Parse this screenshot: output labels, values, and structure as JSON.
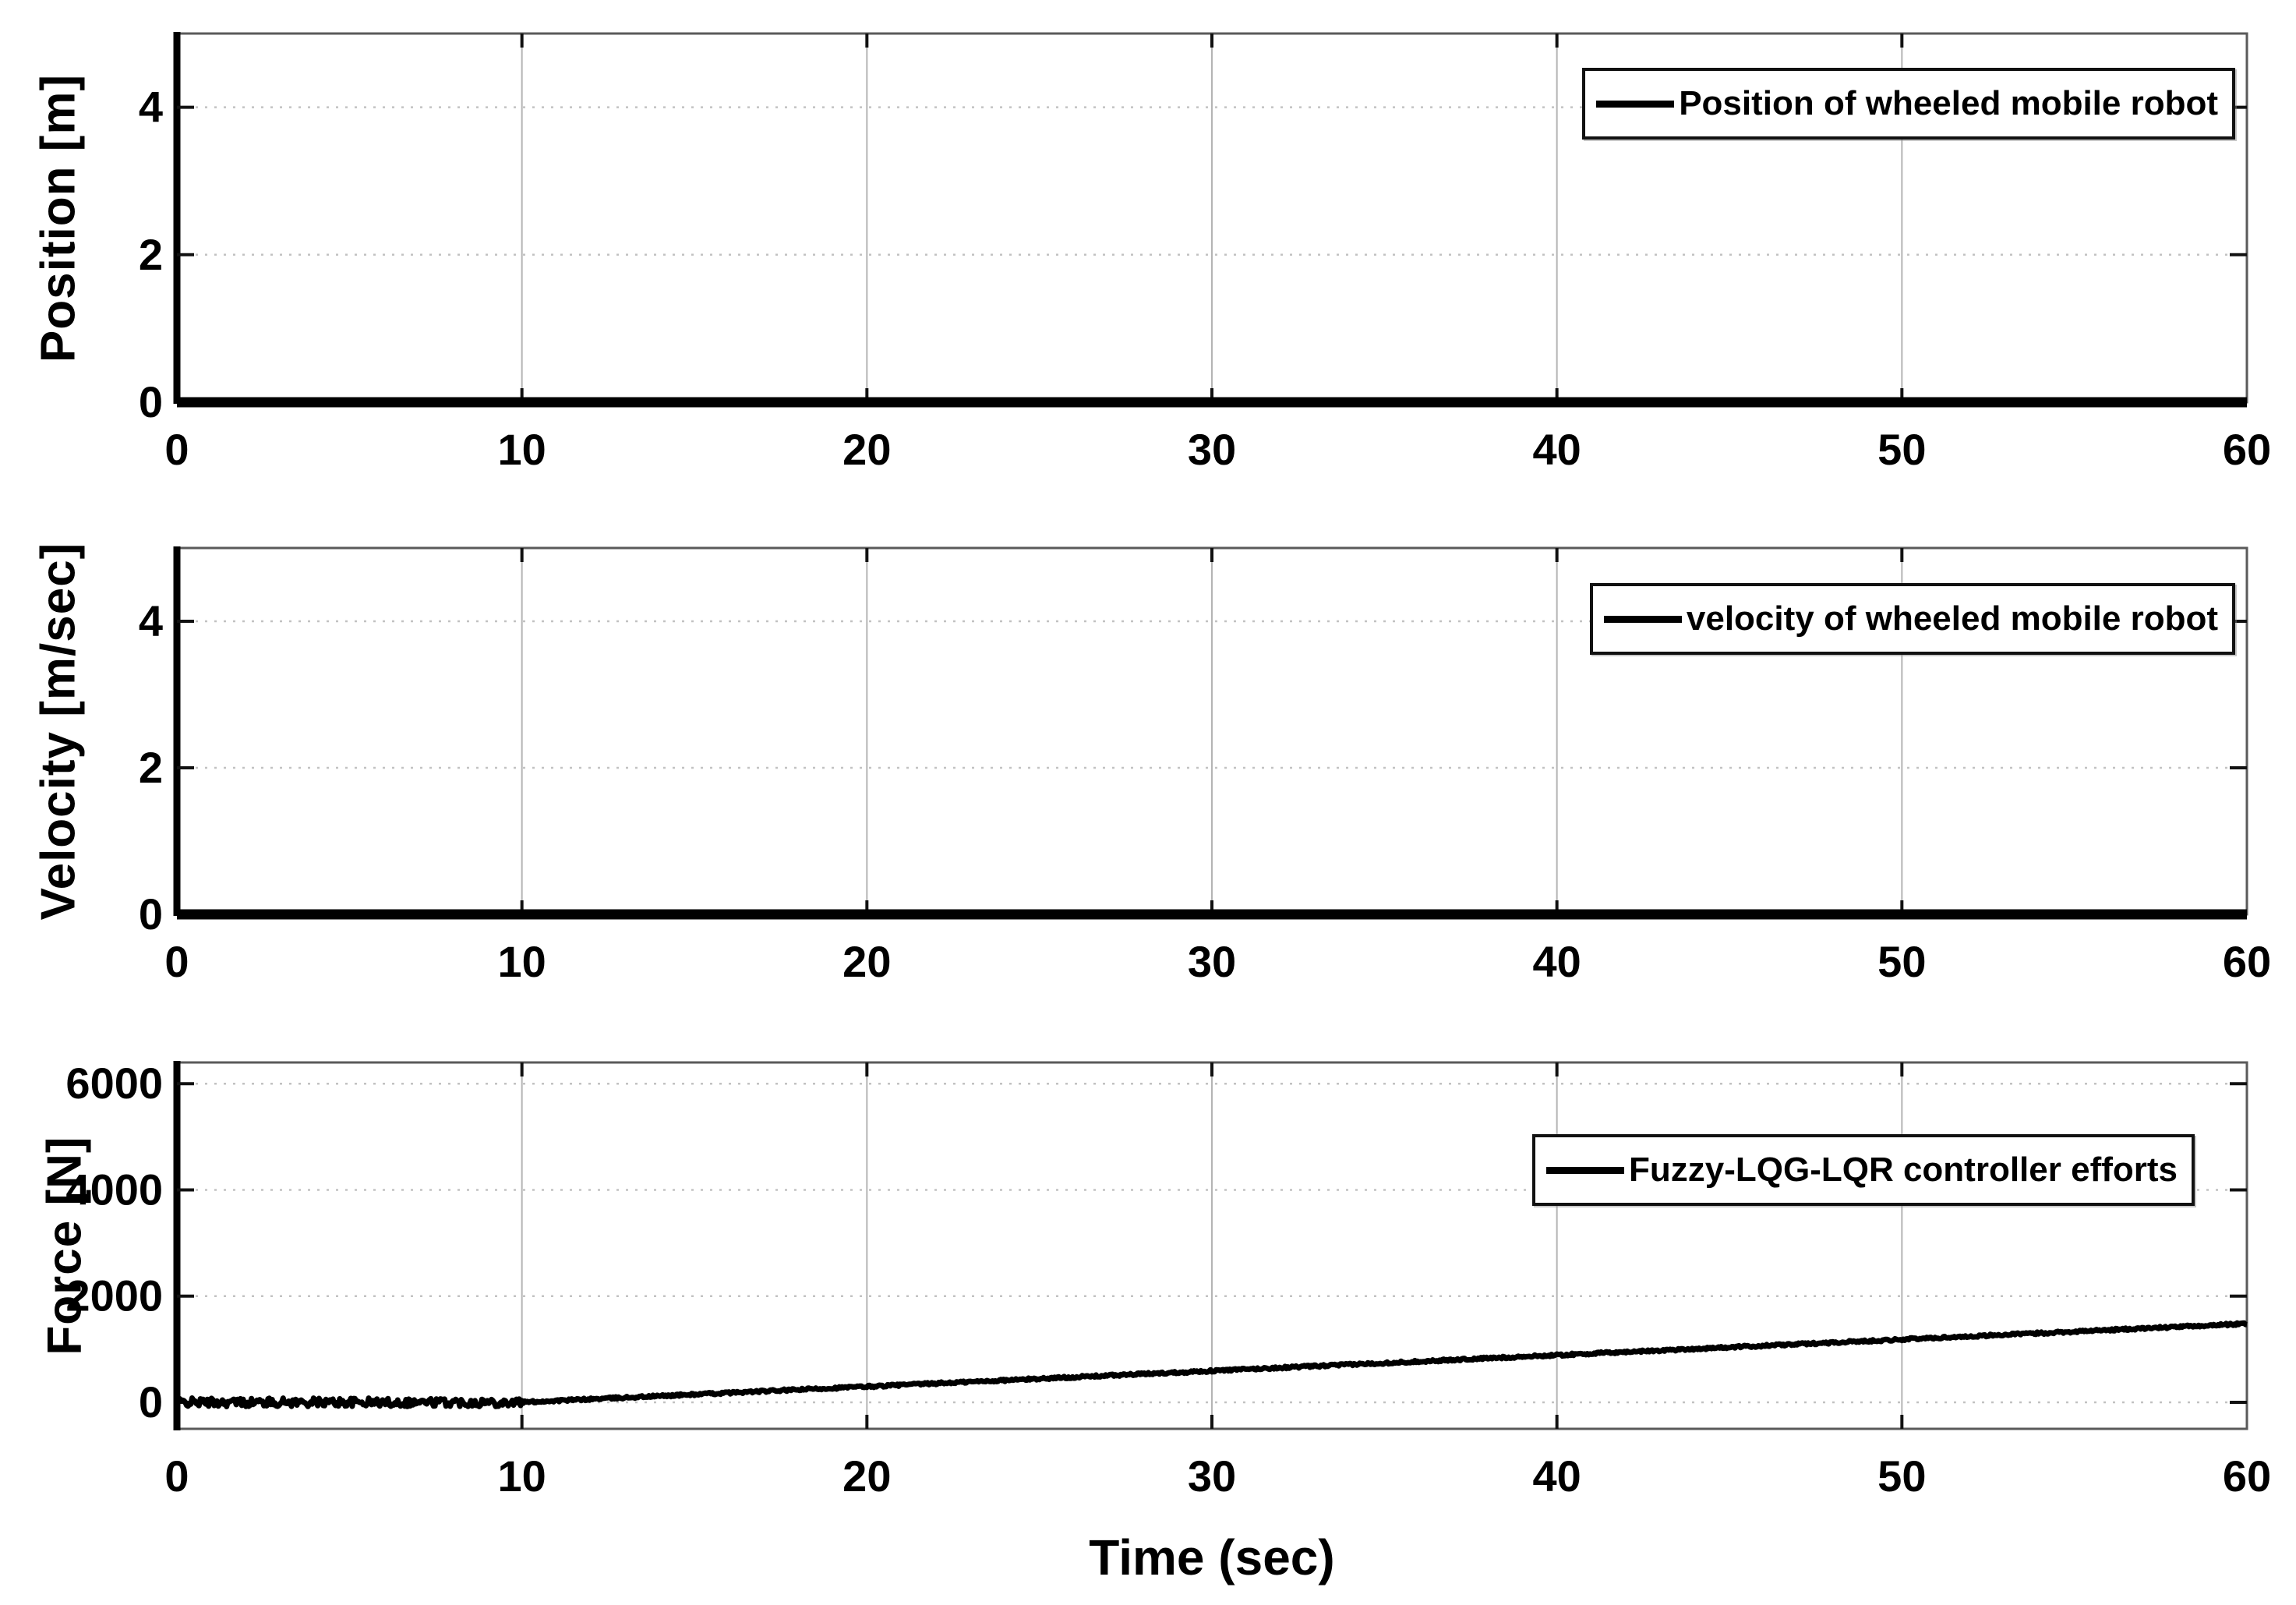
{
  "figure": {
    "background": "#ffffff",
    "line_color": "#000000",
    "grid_color": "#bcbcbc",
    "axis_color": "#555555"
  },
  "chart_data": [
    {
      "type": "line",
      "title": "",
      "xlabel": "",
      "ylabel": "Position [m]",
      "xlim": [
        0,
        60
      ],
      "ylim": [
        0,
        5
      ],
      "xticks": [
        0,
        10,
        20,
        30,
        40,
        50,
        60
      ],
      "yticks": [
        0,
        2,
        4
      ],
      "grid": true,
      "legend": {
        "label": "Position of wheeled mobile robot",
        "position": "northeast"
      },
      "series": [
        {
          "name": "Position of wheeled mobile robot",
          "color": "#000000",
          "shape": "flat",
          "points": [
            [
              0,
              0
            ],
            [
              60,
              0
            ]
          ]
        }
      ]
    },
    {
      "type": "line",
      "title": "",
      "xlabel": "",
      "ylabel": "Velocity [m/sec]",
      "xlim": [
        0,
        60
      ],
      "ylim": [
        0,
        5
      ],
      "xticks": [
        0,
        10,
        20,
        30,
        40,
        50,
        60
      ],
      "yticks": [
        0,
        2,
        4
      ],
      "grid": true,
      "legend": {
        "label": "velocity of wheeled mobile robot",
        "position": "northeast"
      },
      "series": [
        {
          "name": "velocity of wheeled mobile robot",
          "color": "#000000",
          "shape": "flat",
          "points": [
            [
              0,
              0
            ],
            [
              60,
              0
            ]
          ]
        }
      ]
    },
    {
      "type": "line",
      "title": "",
      "xlabel": "Time (sec)",
      "ylabel": "Force [N]",
      "xlim": [
        0,
        60
      ],
      "ylim": [
        -500,
        6400
      ],
      "xticks": [
        0,
        10,
        20,
        30,
        40,
        50,
        60
      ],
      "yticks": [
        0,
        2000,
        4000,
        6000
      ],
      "grid": true,
      "legend": {
        "label": "Fuzzy-LQG-LQR controller efforts",
        "position": "northeast"
      },
      "series": [
        {
          "name": "Fuzzy-LQG-LQR controller efforts",
          "color": "#000000",
          "shape": "noisy-ramp",
          "keypoints": [
            [
              0,
              0
            ],
            [
              10,
              0
            ],
            [
              60,
              1480
            ]
          ],
          "noise": {
            "until_t": 10,
            "amplitude": 80,
            "after_amplitude": 22
          }
        }
      ]
    }
  ]
}
